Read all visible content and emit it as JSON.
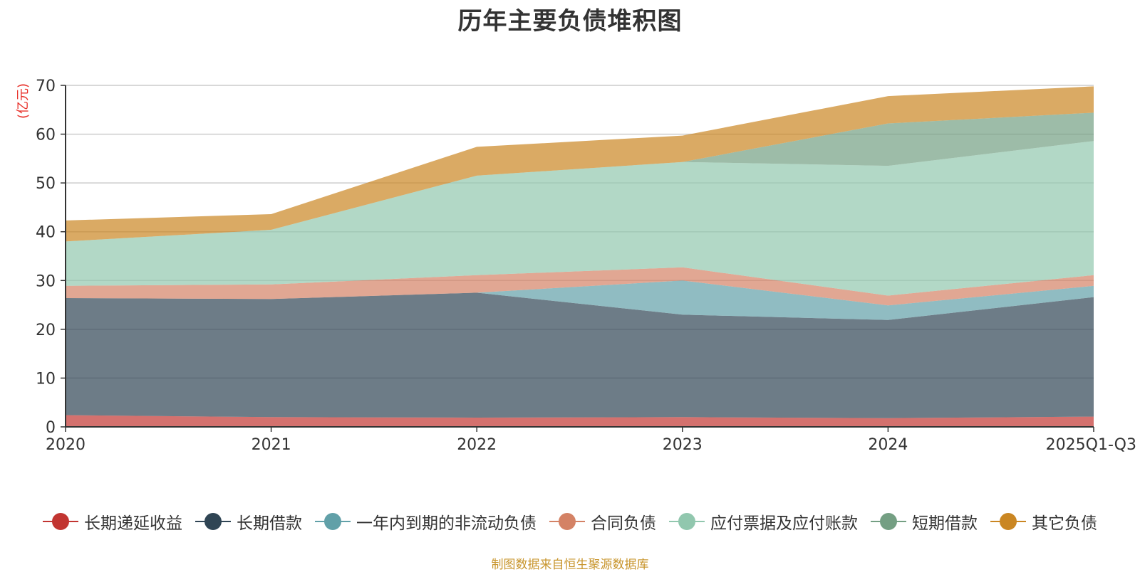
{
  "chart_data": {
    "type": "area",
    "stacked": true,
    "title": "历年主要负债堆积图",
    "ylabel": "(亿元)",
    "xlabel": "",
    "categories": [
      "2020",
      "2021",
      "2022",
      "2023",
      "2024",
      "2025Q1-Q3"
    ],
    "ylim": [
      0,
      70
    ],
    "yticks": [
      0,
      10,
      20,
      30,
      40,
      50,
      60,
      70
    ],
    "grid": true,
    "legend_position": "bottom",
    "series": [
      {
        "name": "长期递延收益",
        "values": [
          2.4,
          2.0,
          1.9,
          2.0,
          1.8,
          2.1
        ],
        "color": "#c23531"
      },
      {
        "name": "长期借款",
        "values": [
          24.0,
          24.2,
          25.6,
          21.0,
          20.1,
          24.5
        ],
        "color": "#2f4554"
      },
      {
        "name": "一年内到期的非流动负债",
        "values": [
          0.0,
          0.0,
          0.0,
          7.0,
          3.0,
          2.3
        ],
        "color": "#61a0a8"
      },
      {
        "name": "合同负债",
        "values": [
          2.5,
          3.0,
          3.6,
          2.7,
          2.0,
          2.2
        ],
        "color": "#d48265"
      },
      {
        "name": "应付票据及应付账款",
        "values": [
          9.1,
          11.2,
          20.4,
          21.6,
          26.6,
          27.5
        ],
        "color": "#91c7ae"
      },
      {
        "name": "短期借款",
        "values": [
          0.0,
          0.0,
          0.0,
          0.0,
          8.7,
          5.8
        ],
        "color": "#749f83"
      },
      {
        "name": "其它负债",
        "values": [
          4.3,
          3.2,
          5.9,
          5.4,
          5.6,
          5.4
        ],
        "color": "#ca8622"
      }
    ]
  },
  "source_note": "制图数据来自恒生聚源数据库"
}
